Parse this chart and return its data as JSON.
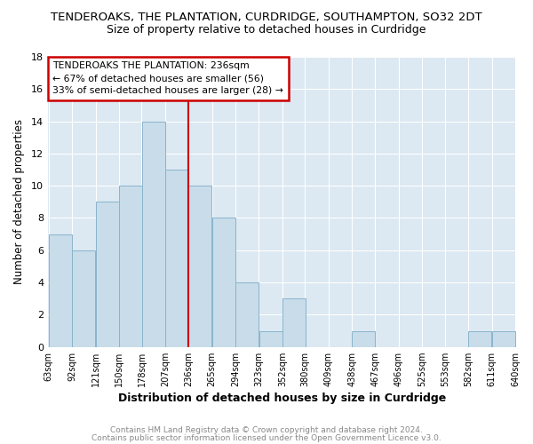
{
  "title": "TENDEROAKS, THE PLANTATION, CURDRIDGE, SOUTHAMPTON, SO32 2DT",
  "subtitle": "Size of property relative to detached houses in Curdridge",
  "xlabel": "Distribution of detached houses by size in Curdridge",
  "ylabel": "Number of detached properties",
  "footer_line1": "Contains HM Land Registry data © Crown copyright and database right 2024.",
  "footer_line2": "Contains public sector information licensed under the Open Government Licence v3.0.",
  "bins_left": [
    63,
    92,
    121,
    150,
    178,
    207,
    236,
    265,
    294,
    323,
    352,
    380,
    409,
    438,
    467,
    496,
    525,
    553,
    582,
    611
  ],
  "bin_width": 29,
  "values": [
    7,
    6,
    9,
    10,
    14,
    11,
    10,
    8,
    4,
    1,
    3,
    0,
    0,
    1,
    0,
    0,
    0,
    0,
    1,
    1
  ],
  "tick_labels": [
    "63sqm",
    "92sqm",
    "121sqm",
    "150sqm",
    "178sqm",
    "207sqm",
    "236sqm",
    "265sqm",
    "294sqm",
    "323sqm",
    "352sqm",
    "380sqm",
    "409sqm",
    "438sqm",
    "467sqm",
    "496sqm",
    "525sqm",
    "553sqm",
    "582sqm",
    "611sqm",
    "640sqm"
  ],
  "bar_color": "#c8dcea",
  "bar_edge_color": "#8ab4cc",
  "vline_x": 236,
  "vline_color": "#cc0000",
  "annotation_title": "TENDEROAKS THE PLANTATION: 236sqm",
  "annotation_line2": "← 67% of detached houses are smaller (56)",
  "annotation_line3": "33% of semi-detached houses are larger (28) →",
  "annotation_box_color": "#ffffff",
  "annotation_box_edge": "#cc0000",
  "ylim": [
    0,
    18
  ],
  "yticks": [
    0,
    2,
    4,
    6,
    8,
    10,
    12,
    14,
    16,
    18
  ],
  "background_color": "#ffffff",
  "plot_bg_color": "#dce8f2",
  "grid_color": "#ffffff",
  "title_fontsize": 9.5,
  "subtitle_fontsize": 9.0,
  "footer_fontsize": 6.5,
  "footer_color": "#888888"
}
